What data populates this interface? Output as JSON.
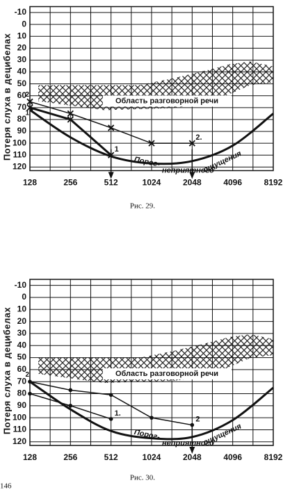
{
  "chart_data": [
    {
      "type": "line",
      "ylabel": "Потеря слуха в децибелах",
      "caption": "Рис. 29.",
      "xscale": "log",
      "xlim": [
        128,
        8192
      ],
      "xticks": [
        128,
        256,
        512,
        1024,
        2048,
        4096,
        8192
      ],
      "xminor": [
        181,
        362,
        724,
        1448,
        2896,
        5793
      ],
      "ylim": [
        -15,
        123
      ],
      "yinvert": true,
      "yticks": [
        -10,
        0,
        10,
        20,
        30,
        40,
        50,
        60,
        70,
        80,
        90,
        100,
        110,
        120
      ],
      "grid": true,
      "marker": "x",
      "threshold": {
        "x": [
          128,
          256,
          512,
          1024,
          2048,
          4096,
          8192
        ],
        "values": [
          72,
          95,
          111,
          117,
          115,
          102,
          75
        ]
      },
      "series": [
        {
          "name": "1",
          "start_label": "1",
          "x": [
            128,
            256,
            512
          ],
          "values": [
            70,
            80,
            110
          ],
          "width": 3
        },
        {
          "name": "2.",
          "start_label": "2",
          "x": [
            128,
            256,
            512,
            1024,
            2048
          ],
          "values": [
            65,
            75,
            87,
            100,
            100
          ],
          "width": 1.5
        }
      ],
      "arrows_at": [
        512,
        2048
      ],
      "annotations": [
        "Область разговорной речи",
        "Порог-",
        "неприятного",
        "ощущения"
      ]
    },
    {
      "type": "line",
      "ylabel": "Потеря слуха в децибелах",
      "caption": "Рис. 30.",
      "xscale": "log",
      "xlim": [
        128,
        8192
      ],
      "xticks": [
        128,
        256,
        512,
        1024,
        2048,
        4096,
        8192
      ],
      "xminor": [
        181,
        362,
        724,
        1448,
        2896,
        5793
      ],
      "ylim": [
        -15,
        123
      ],
      "yinvert": true,
      "yticks": [
        -10,
        0,
        10,
        20,
        30,
        40,
        50,
        60,
        70,
        80,
        90,
        100,
        110,
        120
      ],
      "grid": true,
      "marker": "dot",
      "threshold": {
        "x": [
          128,
          256,
          512,
          1024,
          2048,
          4096,
          8192
        ],
        "values": [
          70,
          93,
          111,
          117,
          116,
          102,
          75
        ]
      },
      "series": [
        {
          "name": "1.",
          "x": [
            128,
            256,
            512
          ],
          "values": [
            80,
            90,
            101
          ],
          "width": 1.5
        },
        {
          "name": "2",
          "start_label": "2",
          "x": [
            128,
            256,
            512,
            1024,
            2048
          ],
          "values": [
            70,
            77,
            81,
            100,
            106
          ],
          "width": 1.5
        }
      ],
      "arrows_at": [
        2048
      ],
      "annotations": [
        "Область разговорной речи",
        "Порог-",
        "неприятного",
        "ощущения"
      ]
    }
  ],
  "page_number": "146"
}
